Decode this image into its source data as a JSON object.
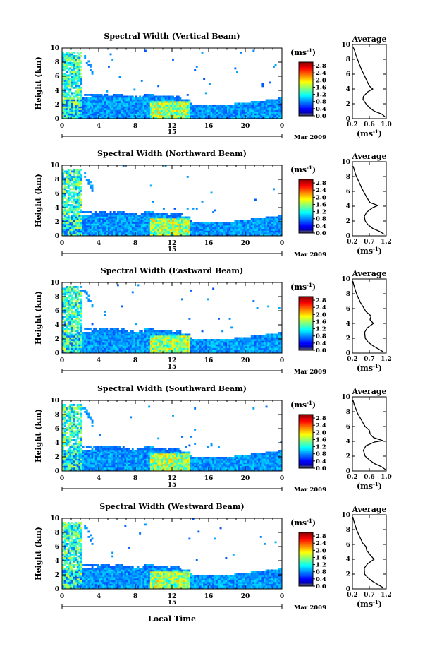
{
  "figure": {
    "shared_xlabel": "Local Time",
    "date_label": "Mar 2009",
    "day_marker": "15",
    "unit_label": "(ms",
    "unit_exp": "-1",
    "avg_title": "Average",
    "avg_xlabel": "(ms",
    "avg_xlabel_exp": "-1",
    "ylabel": "Height (km)"
  },
  "chart_data": [
    {
      "type": "heatmap",
      "title": "Spectral Width (Vertical Beam)",
      "xlabel": "",
      "ylabel": "Height (km)",
      "xlim": [
        0,
        24
      ],
      "ylim": [
        0,
        10
      ],
      "x_ticks": [
        "0",
        "4",
        "8",
        "12",
        "16",
        "20",
        "0"
      ],
      "y_ticks": [
        "0",
        "2",
        "4",
        "6",
        "8",
        "10"
      ],
      "colorbar": {
        "ticks": [
          "0.0",
          "0.4",
          "0.8",
          "1.2",
          "1.6",
          "2.0",
          "2.4",
          "2.8"
        ],
        "range": [
          0,
          3.0
        ],
        "colormap": "jet"
      },
      "avg_profile": {
        "xlim": [
          0.2,
          1.0
        ],
        "x_ticks": [
          "0.2",
          "0.6",
          "1.0"
        ],
        "y_ticks": [
          "0",
          "2",
          "4",
          "6",
          "8",
          "10"
        ],
        "points": [
          [
            0.98,
            0.2
          ],
          [
            0.9,
            0.6
          ],
          [
            0.72,
            1.0
          ],
          [
            0.6,
            1.5
          ],
          [
            0.52,
            2.0
          ],
          [
            0.45,
            2.6
          ],
          [
            0.46,
            3.0
          ],
          [
            0.56,
            3.6
          ],
          [
            0.68,
            4.0
          ],
          [
            0.6,
            4.4
          ],
          [
            0.55,
            5.0
          ],
          [
            0.5,
            5.6
          ],
          [
            0.45,
            6.2
          ],
          [
            0.4,
            6.8
          ],
          [
            0.36,
            7.4
          ],
          [
            0.32,
            8.0
          ],
          [
            0.28,
            8.6
          ],
          [
            0.25,
            9.2
          ],
          [
            0.22,
            9.6
          ]
        ]
      }
    },
    {
      "type": "heatmap",
      "title": "Spectral Width (Northward Beam)",
      "xlabel": "",
      "ylabel": "Height (km)",
      "xlim": [
        0,
        24
      ],
      "ylim": [
        0,
        10
      ],
      "x_ticks": [
        "0",
        "4",
        "8",
        "12",
        "16",
        "20",
        "0"
      ],
      "y_ticks": [
        "0",
        "2",
        "4",
        "6",
        "8",
        "10"
      ],
      "colorbar": {
        "ticks": [
          "0.0",
          "0.4",
          "0.8",
          "1.2",
          "1.6",
          "2.0",
          "2.4",
          "2.8"
        ],
        "range": [
          0,
          3.0
        ],
        "colormap": "jet"
      },
      "avg_profile": {
        "xlim": [
          0.2,
          1.2
        ],
        "x_ticks": [
          "0.2",
          "0.7",
          "1.2"
        ],
        "y_ticks": [
          "0",
          "2",
          "4",
          "6",
          "8",
          "10"
        ],
        "points": [
          [
            1.15,
            0.2
          ],
          [
            1.0,
            0.6
          ],
          [
            0.8,
            1.0
          ],
          [
            0.66,
            1.5
          ],
          [
            0.58,
            2.0
          ],
          [
            0.55,
            2.6
          ],
          [
            0.62,
            3.2
          ],
          [
            0.8,
            3.8
          ],
          [
            0.95,
            4.1
          ],
          [
            0.72,
            4.5
          ],
          [
            0.62,
            5.2
          ],
          [
            0.55,
            5.8
          ],
          [
            0.48,
            6.4
          ],
          [
            0.42,
            7.0
          ],
          [
            0.36,
            7.6
          ],
          [
            0.3,
            8.2
          ],
          [
            0.26,
            8.8
          ],
          [
            0.22,
            9.4
          ]
        ]
      }
    },
    {
      "type": "heatmap",
      "title": "Spectral Width (Eastward Beam)",
      "xlabel": "",
      "ylabel": "Height (km)",
      "xlim": [
        0,
        24
      ],
      "ylim": [
        0,
        10
      ],
      "x_ticks": [
        "0",
        "4",
        "8",
        "12",
        "16",
        "20",
        "0"
      ],
      "y_ticks": [
        "0",
        "2",
        "4",
        "6",
        "8",
        "10"
      ],
      "colorbar": {
        "ticks": [
          "0.0",
          "0.4",
          "0.8",
          "1.2",
          "1.6",
          "2.0",
          "2.4",
          "2.8"
        ],
        "range": [
          0,
          3.0
        ],
        "colormap": "jet"
      },
      "avg_profile": {
        "xlim": [
          0.2,
          1.2
        ],
        "x_ticks": [
          "0.2",
          "0.7",
          "1.2"
        ],
        "y_ticks": [
          "0",
          "2",
          "4",
          "6",
          "8",
          "10"
        ],
        "points": [
          [
            1.1,
            0.2
          ],
          [
            0.95,
            0.6
          ],
          [
            0.8,
            1.0
          ],
          [
            0.66,
            1.5
          ],
          [
            0.58,
            2.0
          ],
          [
            0.56,
            2.8
          ],
          [
            0.64,
            3.4
          ],
          [
            0.82,
            4.0
          ],
          [
            0.72,
            4.5
          ],
          [
            0.75,
            5.0
          ],
          [
            0.6,
            5.6
          ],
          [
            0.52,
            6.2
          ],
          [
            0.44,
            6.8
          ],
          [
            0.38,
            7.4
          ],
          [
            0.32,
            8.0
          ],
          [
            0.28,
            8.6
          ],
          [
            0.24,
            9.2
          ],
          [
            0.21,
            9.7
          ]
        ]
      }
    },
    {
      "type": "heatmap",
      "title": "Spectral Width (Southward Beam)",
      "xlabel": "",
      "ylabel": "Height (km)",
      "xlim": [
        0,
        24
      ],
      "ylim": [
        0,
        10
      ],
      "x_ticks": [
        "0",
        "4",
        "8",
        "12",
        "16",
        "20",
        "0"
      ],
      "y_ticks": [
        "0",
        "2",
        "4",
        "6",
        "8",
        "10"
      ],
      "colorbar": {
        "ticks": [
          "0.0",
          "0.4",
          "0.8",
          "1.2",
          "1.6",
          "2.0",
          "2.4",
          "2.8"
        ],
        "range": [
          0,
          3.0
        ],
        "colormap": "jet"
      },
      "avg_profile": {
        "xlim": [
          0.2,
          1.0
        ],
        "x_ticks": [
          "0.2",
          "0.6",
          "1.0"
        ],
        "y_ticks": [
          "0",
          "2",
          "4",
          "6",
          "8",
          "10"
        ],
        "points": [
          [
            0.98,
            0.2
          ],
          [
            0.88,
            0.6
          ],
          [
            0.72,
            1.0
          ],
          [
            0.6,
            1.5
          ],
          [
            0.5,
            2.0
          ],
          [
            0.46,
            2.8
          ],
          [
            0.52,
            3.4
          ],
          [
            0.72,
            3.9
          ],
          [
            0.92,
            4.1
          ],
          [
            0.7,
            4.5
          ],
          [
            0.62,
            5.0
          ],
          [
            0.6,
            5.5
          ],
          [
            0.5,
            6.0
          ],
          [
            0.44,
            6.6
          ],
          [
            0.38,
            7.2
          ],
          [
            0.32,
            7.8
          ],
          [
            0.28,
            8.4
          ],
          [
            0.24,
            9.0
          ],
          [
            0.21,
            9.6
          ]
        ]
      }
    },
    {
      "type": "heatmap",
      "title": "Spectral Width (Westward Beam)",
      "xlabel": "Local Time",
      "ylabel": "Height (km)",
      "xlim": [
        0,
        24
      ],
      "ylim": [
        0,
        10
      ],
      "x_ticks": [
        "0",
        "4",
        "8",
        "12",
        "16",
        "20",
        "0"
      ],
      "y_ticks": [
        "0",
        "2",
        "4",
        "6",
        "8",
        "10"
      ],
      "colorbar": {
        "ticks": [
          "0.0",
          "0.4",
          "0.8",
          "1.2",
          "1.6",
          "2.0",
          "2.4",
          "2.8"
        ],
        "range": [
          0,
          3.0
        ],
        "colormap": "jet"
      },
      "avg_profile": {
        "xlim": [
          0.2,
          1.2
        ],
        "x_ticks": [
          "0.2",
          "0.7",
          "1.2"
        ],
        "y_ticks": [
          "0",
          "2",
          "4",
          "6",
          "8",
          "10"
        ],
        "points": [
          [
            1.1,
            0.2
          ],
          [
            0.95,
            0.6
          ],
          [
            0.8,
            1.0
          ],
          [
            0.66,
            1.5
          ],
          [
            0.56,
            2.0
          ],
          [
            0.55,
            2.8
          ],
          [
            0.65,
            3.4
          ],
          [
            0.84,
            4.0
          ],
          [
            0.72,
            4.6
          ],
          [
            0.62,
            5.2
          ],
          [
            0.6,
            5.7
          ],
          [
            0.5,
            6.2
          ],
          [
            0.44,
            6.8
          ],
          [
            0.38,
            7.4
          ],
          [
            0.32,
            8.0
          ],
          [
            0.28,
            8.6
          ],
          [
            0.24,
            9.2
          ],
          [
            0.21,
            9.7
          ]
        ]
      }
    }
  ]
}
